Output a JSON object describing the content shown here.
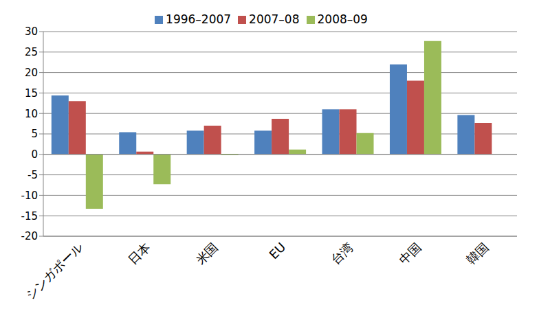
{
  "chart_data": {
    "type": "bar",
    "categories": [
      "シンガポール",
      "日本",
      "米国",
      "EU",
      "台湾",
      "中国",
      "韓国"
    ],
    "series": [
      {
        "name": "1996–2007",
        "color": "#4f81bd",
        "values": [
          14.4,
          5.4,
          5.8,
          5.8,
          11,
          22,
          9.6
        ]
      },
      {
        "name": "2007–08",
        "color": "#c0504d",
        "values": [
          13,
          0.7,
          7,
          8.7,
          11,
          18,
          7.7
        ]
      },
      {
        "name": "2008–09",
        "color": "#9bbb59",
        "values": [
          -13.3,
          -7.3,
          -0.2,
          1.2,
          5.2,
          27.7,
          null
        ]
      }
    ],
    "ylim": [
      -20,
      30
    ],
    "yticks": [
      -20,
      -15,
      -10,
      -5,
      0,
      5,
      10,
      15,
      20,
      25,
      30
    ],
    "grid": true,
    "legend": "top"
  }
}
